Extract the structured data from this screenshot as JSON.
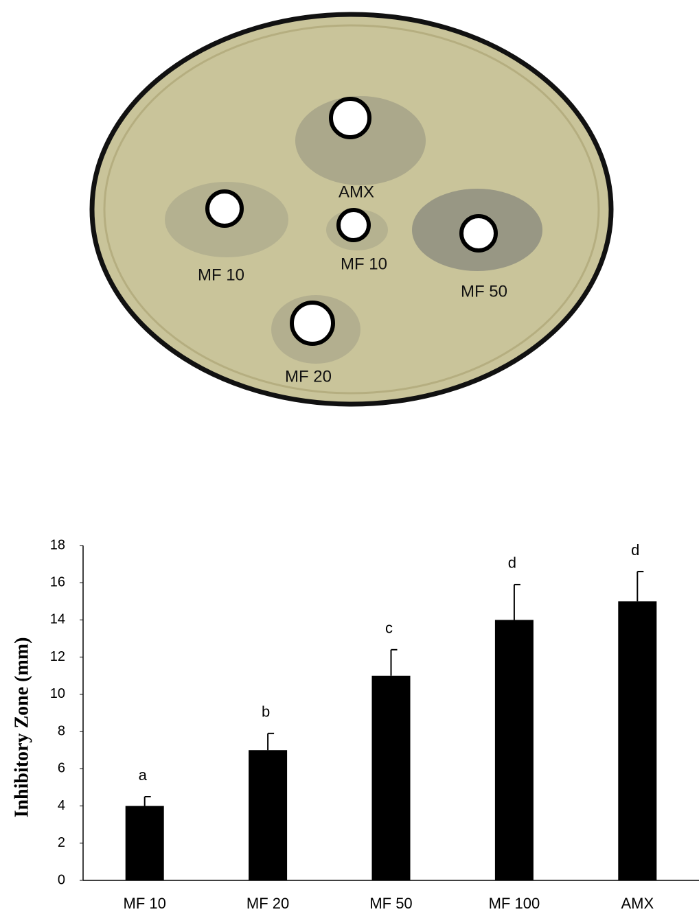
{
  "photo": {
    "labels": [
      "AMX",
      "MF 10",
      "MF 10",
      "MF 50",
      "MF 20"
    ]
  },
  "chart_data": {
    "type": "bar",
    "ylabel": "Inhibitory Zone (mm)",
    "categories": [
      "MF 10",
      "MF 20",
      "MF 50",
      "MF 100",
      "AMX"
    ],
    "values": [
      4,
      7,
      11,
      14,
      15
    ],
    "errors": [
      0.5,
      0.9,
      1.4,
      1.9,
      1.6
    ],
    "annotations": [
      "a",
      "b",
      "c",
      "d",
      "d"
    ],
    "color": "#000000",
    "ylim": [
      0,
      18
    ],
    "yticks": [
      0,
      2,
      4,
      6,
      8,
      10,
      12,
      14,
      16,
      18
    ],
    "grid": false
  }
}
